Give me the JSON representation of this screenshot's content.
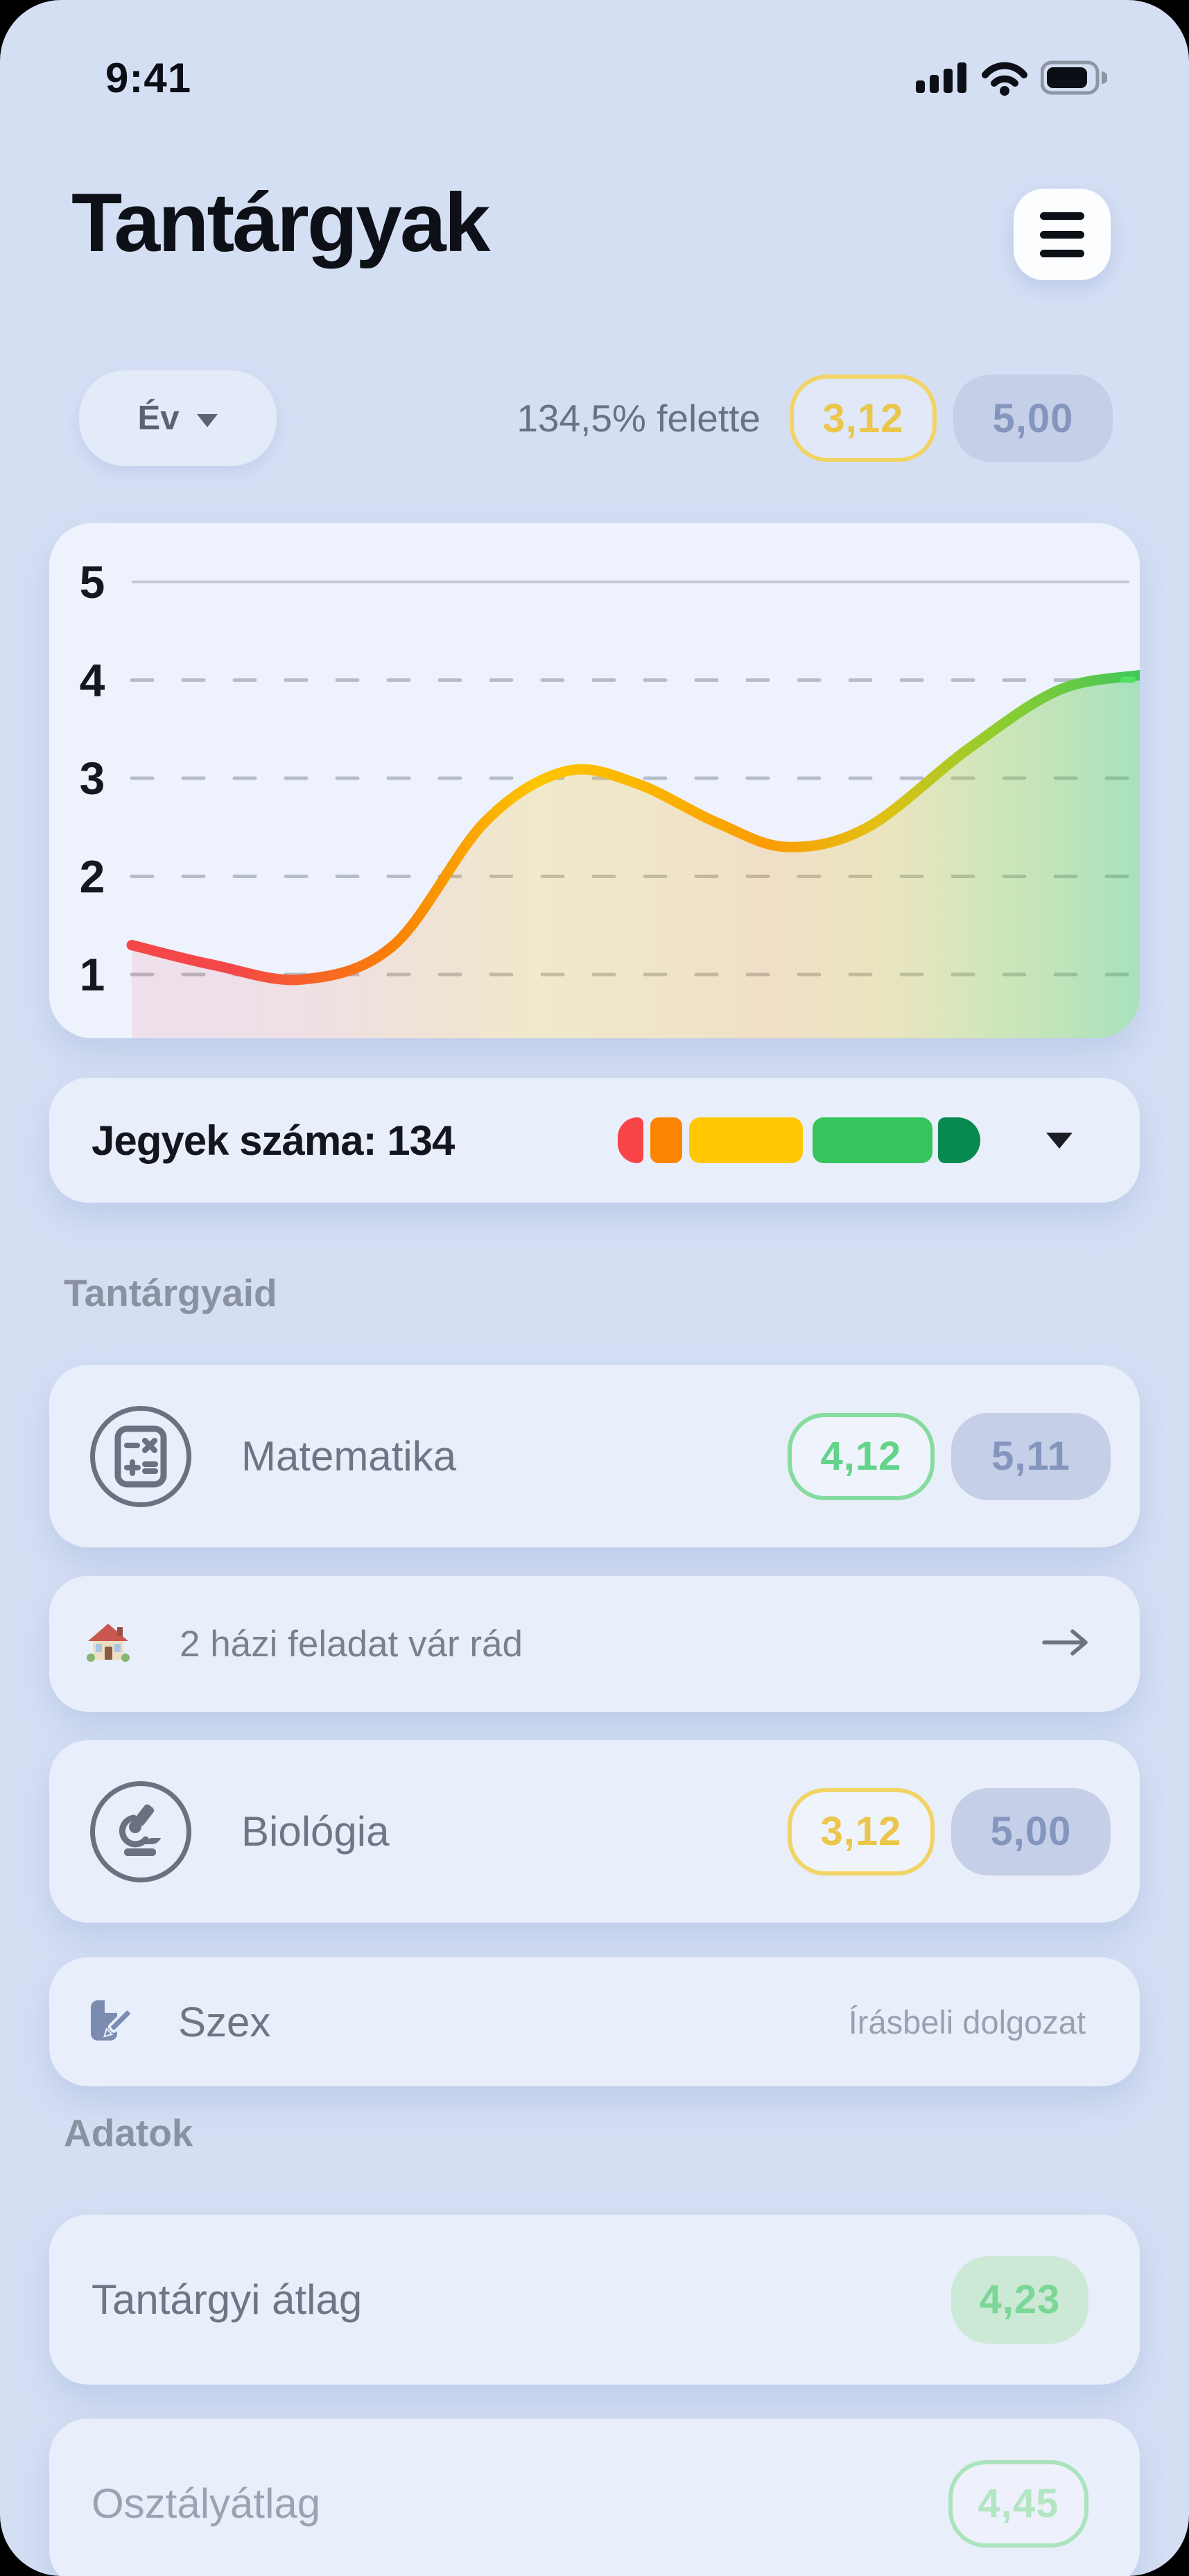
{
  "colors": {
    "page_bg": "#d5dff4",
    "card_bg": "#e9eefb",
    "chart_card_bg": "#edf2fd",
    "title_text": "#0d1017",
    "muted_text": "#6e7585",
    "section_label": "#8a92a2",
    "yellow_badge_border": "#f1d465",
    "yellow_badge_text": "#ebc64a",
    "blue_badge_bg": "#c5cfe8",
    "blue_badge_text": "#8495be",
    "green_outline_border": "#86dc9e",
    "green_outline_text": "#63d48a",
    "green_filled_bg": "#cbe9d4",
    "green_filled_text": "#7cd697",
    "bar_red": "#f94447",
    "bar_orange": "#fb8500",
    "bar_yellow": "#ffc803",
    "bar_green": "#36c45c",
    "bar_dark_green": "#07894f",
    "chart_end_marker": "#4fe163"
  },
  "status_bar": {
    "time": "9:41",
    "icons": [
      "cellular-signal-icon",
      "wifi-icon",
      "battery-icon"
    ]
  },
  "header": {
    "title": "Tantárgyak",
    "menu_icon": "hamburger-menu-icon"
  },
  "filter_row": {
    "period_button": {
      "label": "Év",
      "icon": "caret-down-icon"
    },
    "above_average_text": "134,5% felette",
    "badges": [
      {
        "value": "3,12",
        "style": "yellow-outline"
      },
      {
        "value": "5,00",
        "style": "blue-filled"
      }
    ]
  },
  "chart_data": {
    "type": "area",
    "title": "",
    "xlabel": "",
    "ylabel": "",
    "y_ticks": [
      "5",
      "4",
      "3",
      "2",
      "1"
    ],
    "ylim": [
      0.5,
      5.3
    ],
    "x_range": [
      0,
      10
    ],
    "grid": "horizontal; top line solid, others dashed",
    "legend": "none",
    "series": [
      {
        "name": "grade-trend",
        "x": [
          0,
          0.8,
          1.7,
          2.6,
          3.5,
          4.3,
          5.0,
          5.8,
          6.5,
          7.3,
          8.3,
          9.2,
          10
        ],
        "values": [
          1.3,
          1.1,
          0.95,
          1.3,
          2.55,
          3.07,
          2.95,
          2.55,
          2.3,
          2.5,
          3.3,
          3.9,
          4.05
        ]
      }
    ],
    "gradient": [
      {
        "offset": 0,
        "color": "#f4474a",
        "fill_opacity": 0.1
      },
      {
        "offset": 0.1,
        "color": "#f4474a",
        "fill_opacity": 0.11
      },
      {
        "offset": 0.26,
        "color": "#f98105",
        "fill_opacity": 0.14
      },
      {
        "offset": 0.4,
        "color": "#fdc500",
        "fill_opacity": 0.2
      },
      {
        "offset": 0.52,
        "color": "#f9b402",
        "fill_opacity": 0.21
      },
      {
        "offset": 0.63,
        "color": "#fb9b05",
        "fill_opacity": 0.22
      },
      {
        "offset": 0.74,
        "color": "#e4c013",
        "fill_opacity": 0.26
      },
      {
        "offset": 0.85,
        "color": "#94cd2c",
        "fill_opacity": 0.32
      },
      {
        "offset": 1,
        "color": "#3fc75b",
        "fill_opacity": 0.4
      }
    ],
    "end_marker_color": "#4fe163"
  },
  "grades_summary": {
    "label": "Jegyek száma: 134",
    "segments": [
      {
        "color": "#f94447",
        "weight": 37
      },
      {
        "color": "#fb8500",
        "weight": 46
      },
      {
        "color": "#ffc803",
        "weight": 164
      },
      {
        "color": "#36c45c",
        "weight": 173
      },
      {
        "color": "#07894f",
        "weight": 61
      }
    ],
    "expander_icon": "chevron-down-icon"
  },
  "subjects_section": {
    "title": "Tantárgyaid",
    "rows": [
      {
        "type": "subject",
        "icon": "calculator-icon",
        "name": "Matematika",
        "badges": [
          {
            "value": "4,12",
            "style": "green-outline"
          },
          {
            "value": "5,11",
            "style": "blue-filled"
          }
        ]
      },
      {
        "type": "notice",
        "icon": "house-icon",
        "text": "2 házi feladat vár rád",
        "action_icon": "arrow-right-icon"
      },
      {
        "type": "subject",
        "icon": "microscope-icon",
        "name": "Biológia",
        "badges": [
          {
            "value": "3,12",
            "style": "yellow-outline"
          },
          {
            "value": "5,00",
            "style": "blue-filled"
          }
        ]
      },
      {
        "type": "subject",
        "icon": "document-edit-icon",
        "name": "Szex",
        "right_text": "Írásbeli dolgozat"
      }
    ]
  },
  "data_section": {
    "title": "Adatok",
    "rows": [
      {
        "label": "Tantárgyi átlag",
        "badge": {
          "value": "4,23",
          "style": "green-filled"
        }
      },
      {
        "label": "Osztályátlag",
        "badge": {
          "value": "4,45",
          "style": "green-outline-faded"
        }
      }
    ]
  }
}
